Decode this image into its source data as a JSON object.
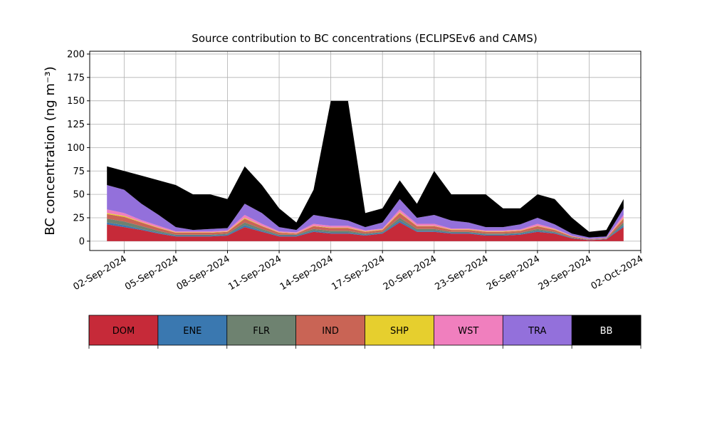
{
  "chart_data": {
    "type": "stacked_area",
    "title": "Source contribution to BC concentrations (ECLIPSEv6 and CAMS)",
    "y_label": "BC concentration (ng m⁻³)",
    "x": [
      "2024-09-01",
      "2024-09-02",
      "2024-09-03",
      "2024-09-04",
      "2024-09-05",
      "2024-09-06",
      "2024-09-07",
      "2024-09-08",
      "2024-09-09",
      "2024-09-10",
      "2024-09-11",
      "2024-09-12",
      "2024-09-13",
      "2024-09-14",
      "2024-09-15",
      "2024-09-16",
      "2024-09-17",
      "2024-09-18",
      "2024-09-19",
      "2024-09-20",
      "2024-09-21",
      "2024-09-22",
      "2024-09-23",
      "2024-09-24",
      "2024-09-25",
      "2024-09-26",
      "2024-09-27",
      "2024-09-28",
      "2024-09-29",
      "2024-09-30",
      "2024-10-01"
    ],
    "series": [
      {
        "name": "DOM",
        "color": "#c62a39",
        "values": [
          18,
          15,
          12,
          8,
          5,
          5,
          5,
          6,
          15,
          10,
          5,
          5,
          10,
          8,
          8,
          6,
          8,
          20,
          10,
          10,
          8,
          8,
          6,
          6,
          7,
          10,
          8,
          3,
          1,
          2,
          15
        ]
      },
      {
        "name": "ENE",
        "color": "#3a78b0",
        "values": [
          2,
          2,
          1,
          1,
          1,
          1,
          1,
          1,
          2,
          1,
          1,
          1,
          1,
          1,
          1,
          1,
          1,
          2,
          1,
          1,
          1,
          1,
          1,
          1,
          1,
          1,
          1,
          0.5,
          0.3,
          0.3,
          2
        ]
      },
      {
        "name": "FLR",
        "color": "#6e8270",
        "values": [
          4,
          4,
          3,
          2,
          1,
          1,
          1,
          1,
          3,
          2,
          1,
          1,
          2,
          2,
          2,
          1,
          1,
          3,
          2,
          2,
          1,
          1,
          1,
          1,
          1,
          2,
          1,
          0.5,
          0.3,
          0.3,
          3
        ]
      },
      {
        "name": "IND",
        "color": "#c96455",
        "values": [
          5,
          5,
          4,
          3,
          2,
          2,
          2,
          2,
          4,
          3,
          2,
          1,
          3,
          3,
          3,
          2,
          2,
          5,
          3,
          3,
          2,
          2,
          2,
          2,
          2,
          3,
          2,
          1,
          0.5,
          0.5,
          4
        ]
      },
      {
        "name": "SHP",
        "color": "#e6cf2e",
        "values": [
          1,
          1,
          0.5,
          0.5,
          0.5,
          0.5,
          0.5,
          0.5,
          1,
          0.5,
          0.5,
          0.5,
          0.5,
          0.5,
          0.5,
          0.5,
          0.5,
          1,
          0.5,
          0.5,
          0.5,
          0.5,
          0.5,
          0.5,
          0.5,
          0.5,
          0.5,
          0.2,
          0.1,
          0.1,
          1
        ]
      },
      {
        "name": "WST",
        "color": "#f07fbe",
        "values": [
          4,
          3,
          2,
          2,
          1,
          1,
          1,
          1,
          3,
          2,
          1,
          1,
          2,
          2,
          2,
          1,
          1,
          3,
          2,
          2,
          1,
          1,
          1,
          1,
          1,
          2,
          1,
          0.5,
          0.3,
          0.3,
          3
        ]
      },
      {
        "name": "TRA",
        "color": "#9370db",
        "values": [
          26,
          25,
          17.5,
          11.5,
          4.5,
          1.5,
          2.5,
          2.5,
          12,
          11.5,
          4.5,
          2.5,
          9.5,
          8.5,
          5.5,
          3.5,
          6.5,
          11,
          6.5,
          9.5,
          8.5,
          6.5,
          3.5,
          3.5,
          5.5,
          6.5,
          4.5,
          2.3,
          1.5,
          1.5,
          7
        ]
      },
      {
        "name": "BB",
        "color": "#000000",
        "values": [
          20,
          20,
          30,
          37,
          45,
          38,
          37,
          31,
          40,
          30,
          20,
          8,
          27,
          125,
          128,
          15,
          15,
          20,
          15,
          47,
          28,
          30,
          35,
          20,
          17,
          25,
          27,
          17,
          6,
          7,
          10
        ]
      }
    ],
    "xlim": [
      "2024-08-31",
      "2024-10-02"
    ],
    "xticks": [
      {
        "value": "2024-09-02",
        "label": "02-Sep-2024"
      },
      {
        "value": "2024-09-05",
        "label": "05-Sep-2024"
      },
      {
        "value": "2024-09-08",
        "label": "08-Sep-2024"
      },
      {
        "value": "2024-09-11",
        "label": "11-Sep-2024"
      },
      {
        "value": "2024-09-14",
        "label": "14-Sep-2024"
      },
      {
        "value": "2024-09-17",
        "label": "17-Sep-2024"
      },
      {
        "value": "2024-09-20",
        "label": "20-Sep-2024"
      },
      {
        "value": "2024-09-23",
        "label": "23-Sep-2024"
      },
      {
        "value": "2024-09-26",
        "label": "26-Sep-2024"
      },
      {
        "value": "2024-09-29",
        "label": "29-Sep-2024"
      },
      {
        "value": "2024-10-02",
        "label": "02-Oct-2024"
      }
    ],
    "ylim": [
      -10,
      203
    ],
    "yticks": [
      0,
      25,
      50,
      75,
      100,
      125,
      150,
      175,
      200
    ],
    "grid": true
  }
}
